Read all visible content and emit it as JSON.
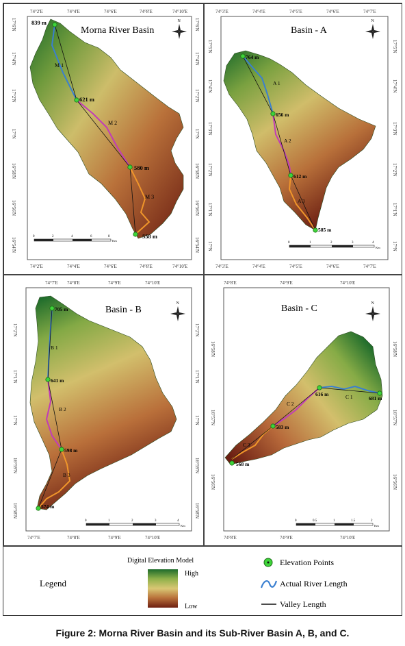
{
  "caption": "Figure 2: Morna River Basin and its Sub-River Basin A, B, and C.",
  "panels": {
    "morna": {
      "title": "Morna River Basin",
      "points": [
        "839 m",
        "621 m",
        "580 m",
        "558 m"
      ],
      "segments": [
        "M 1",
        "M 2",
        "M 3"
      ],
      "top_ticks": [
        "74°2'E",
        "74°4'E",
        "74°6'E",
        "74°8'E",
        "74°10'E"
      ],
      "bottom_ticks": [
        "74°2'E",
        "74°4'E",
        "74°6'E",
        "74°8'E",
        "74°10'E"
      ],
      "left_ticks": [
        "17°6'N",
        "17°4'N",
        "17°2'N",
        "17°N",
        "16°58'N",
        "16°56'N",
        "16°54'N"
      ],
      "right_ticks": [
        "17°6'N",
        "17°4'N",
        "17°2'N",
        "17°N",
        "16°58'N",
        "16°56'N",
        "16°54'N"
      ],
      "scale_labels": [
        "0",
        "2",
        "4",
        "6",
        "8"
      ],
      "scale_unit": "Km"
    },
    "basin_a": {
      "title": "Basin - A",
      "points": [
        "764 m",
        "656 m",
        "612 m",
        "585 m"
      ],
      "segments": [
        "A 1",
        "A 2",
        "A 3"
      ],
      "top_ticks": [
        "74°3'E",
        "74°4'E",
        "74°5'E",
        "74°6'E",
        "74°7'E"
      ],
      "bottom_ticks": [
        "74°3'E",
        "74°4'E",
        "74°5'E",
        "74°6'E",
        "74°7'E"
      ],
      "left_ticks": [
        "17°5'N",
        "17°4'N",
        "17°3'N",
        "17°2'N",
        "17°1'N",
        "17°N"
      ],
      "right_ticks": [
        "17°5'N",
        "17°4'N",
        "17°3'N",
        "17°2'N",
        "17°1'N",
        "17°N"
      ],
      "scale_labels": [
        "0",
        "1",
        "2",
        "3",
        "4"
      ],
      "scale_unit": "Km"
    },
    "basin_b": {
      "title": "Basin - B",
      "points": [
        "705 m",
        "641 m",
        "598 m",
        "574 m"
      ],
      "segments": [
        "B 1",
        "B 2",
        "B 3"
      ],
      "top_ticks": [
        "74°7'E",
        "74°8'E",
        "74°9'E",
        "74°10'E"
      ],
      "bottom_ticks": [
        "74°7'E",
        "74°8'E",
        "74°9'E",
        "74°10'E"
      ],
      "left_ticks": [
        "17°2'N",
        "17°1'N",
        "17°N",
        "16°59'N",
        "16°58'N"
      ],
      "right_ticks": [
        "17°2'N",
        "17°1'N",
        "17°N",
        "16°59'N",
        "16°58'N"
      ],
      "scale_labels": [
        "0",
        "1",
        "2",
        "3",
        "4"
      ],
      "scale_unit": "Km"
    },
    "basin_c": {
      "title": "Basin - C",
      "points": [
        "681 m",
        "616 m",
        "583 m",
        "568 m"
      ],
      "segments": [
        "C 1",
        "C 2",
        "C 3"
      ],
      "top_ticks": [
        "74°8'E",
        "74°9'E",
        "74°10'E"
      ],
      "bottom_ticks": [
        "74°8'E",
        "74°9'E",
        "74°10'E"
      ],
      "left_ticks": [
        "16°58'N",
        "16°57'N",
        "16°56'N"
      ],
      "right_ticks": [
        "16°58'N",
        "16°57'N",
        "16°56'N"
      ],
      "scale_labels": [
        "0",
        "0.5",
        "1",
        "1.5",
        "2"
      ],
      "scale_unit": "Km"
    }
  },
  "north_label": "N",
  "legend": {
    "title": "Legend",
    "dem_title": "Digital Elevation Model",
    "dem_high": "High",
    "dem_low": "Low",
    "elevation_points": "Elevation Points",
    "river_length": "Actual River Length",
    "valley_length": "Valley  Length"
  },
  "colors": {
    "dem_high": "#1f6b2a",
    "dem_mid": "#d9c774",
    "dem_low": "#6e1f10",
    "river_segment_1": "#3a7fd0",
    "river_segment_2": "#c13cb8",
    "river_segment_3": "#f0962a",
    "valley_line": "#111111",
    "elevation_point": "#3fd43a"
  }
}
